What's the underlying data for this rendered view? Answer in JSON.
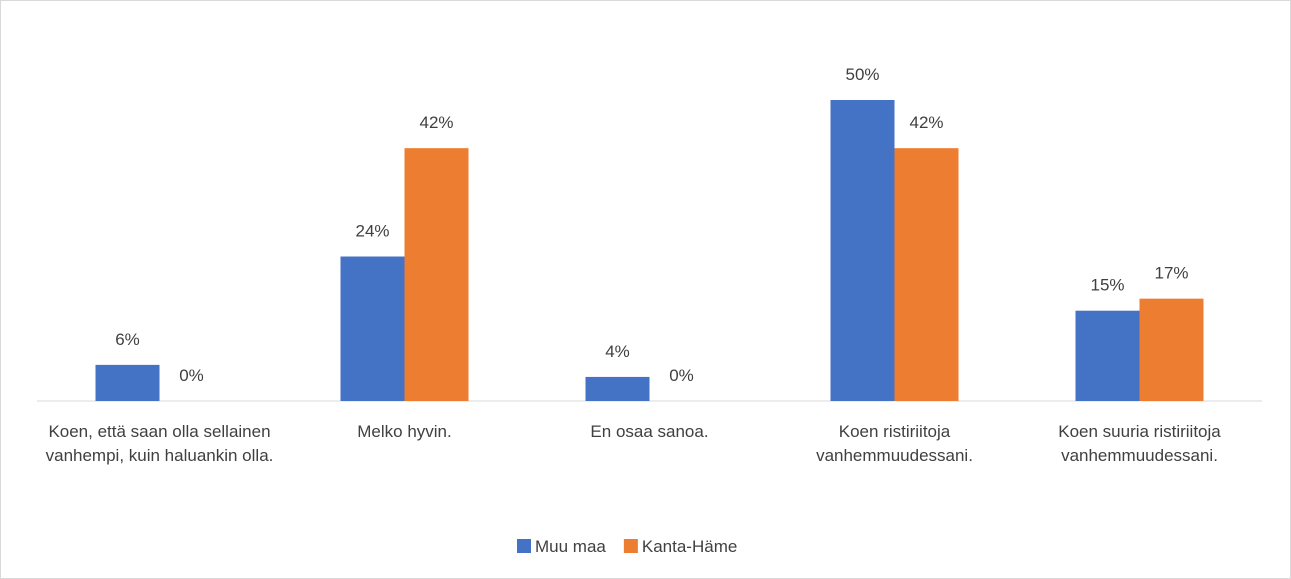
{
  "chart_data": {
    "type": "bar",
    "categories": [
      "Koen, että saan olla sellainen vanhempi, kuin haluankin olla.",
      "Melko hyvin.",
      "En osaa sanoa.",
      "Koen ristiriitoja vanhemmuudessani.",
      "Koen suuria ristiriitoja vanhemmuudessani."
    ],
    "series": [
      {
        "name": "Muu maa",
        "color": "#4472c4",
        "values": [
          6,
          24,
          4,
          50,
          15
        ],
        "value_labels": [
          "6%",
          "24%",
          "4%",
          "50%",
          "15%"
        ]
      },
      {
        "name": "Kanta-Häme",
        "color": "#ed7d31",
        "values": [
          0,
          42,
          0,
          42,
          17
        ],
        "value_labels": [
          "0%",
          "42%",
          "0%",
          "42%",
          "17%"
        ]
      }
    ],
    "ylim": [
      0,
      50
    ],
    "legend": "bottom"
  }
}
